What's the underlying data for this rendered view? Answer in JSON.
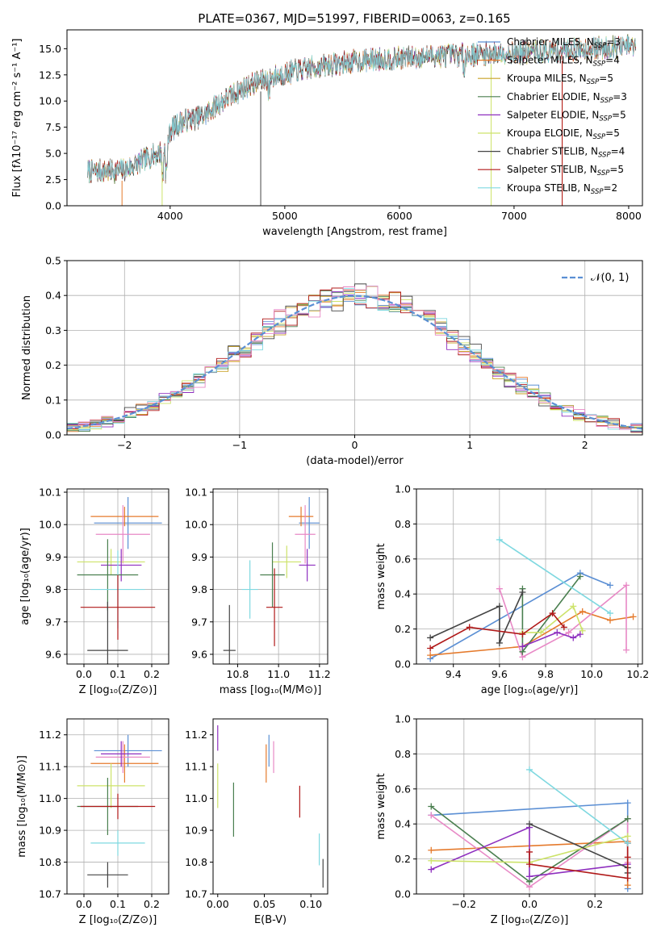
{
  "chart_data": [
    {
      "id": "spectrum",
      "type": "line",
      "title": "PLATE=0367, MJD=51997, FIBERID=0063, z=0.165",
      "xlabel": "wavelength [Angstrom, rest frame]",
      "ylabel": "Flux [fλ10⁻¹⁷ erg cm⁻² s⁻¹ A⁻¹]",
      "xlim": [
        3100,
        8120
      ],
      "ylim": [
        0,
        16.8
      ],
      "xticks": [
        "4000",
        "5000",
        "6000",
        "7000",
        "8000"
      ],
      "yticks": [
        "0.0",
        "2.5",
        "5.0",
        "7.5",
        "10.0",
        "12.5",
        "15.0"
      ],
      "legend": "upper-right",
      "grid": false,
      "continuum": {
        "x": [
          3300,
          3450,
          3600,
          3800,
          3950,
          4000,
          4100,
          4200,
          4300,
          4400,
          4500,
          4700,
          4900,
          5100,
          5300,
          5500,
          5700,
          6000,
          6300,
          6600,
          6900,
          7200,
          7500,
          7800,
          8000
        ],
        "y": [
          3.3,
          3.3,
          3.4,
          4.5,
          5.3,
          7.2,
          8.0,
          8.3,
          8.6,
          9.6,
          10.3,
          11.6,
          12.3,
          12.9,
          13.3,
          13.6,
          13.9,
          14.1,
          14.3,
          14.4,
          14.6,
          14.7,
          14.9,
          15.1,
          15.2
        ]
      },
      "series": [
        {
          "name": "Chabrier MILES, N$_{SSP}$=3",
          "label_main": "Chabrier MILES, N",
          "label_sub": "SSP",
          "label_tail": "=3",
          "color": "#5b8fd4"
        },
        {
          "name": "Salpeter MILES, N$_{SSP}$=4",
          "label_main": "Salpeter MILES, N",
          "label_sub": "SSP",
          "label_tail": "=4",
          "color": "#e57a2c"
        },
        {
          "name": "Kroupa MILES, N$_{SSP}$=5",
          "label_main": "Kroupa MILES, N",
          "label_sub": "SSP",
          "label_tail": "=5",
          "color": "#c9a227"
        },
        {
          "name": "Chabrier ELODIE, N$_{SSP}$=3",
          "label_main": "Chabrier ELODIE, N",
          "label_sub": "SSP",
          "label_tail": "=3",
          "color": "#4a7f4f"
        },
        {
          "name": "Salpeter ELODIE, N$_{SSP}$=5",
          "label_main": "Salpeter ELODIE, N",
          "label_sub": "SSP",
          "label_tail": "=5",
          "color": "#8e2fbf"
        },
        {
          "name": "Kroupa ELODIE, N$_{SSP}$=5",
          "label_main": "Kroupa ELODIE, N",
          "label_sub": "SSP",
          "label_tail": "=5",
          "color": "#cde36a"
        },
        {
          "name": "Chabrier STELIB, N$_{SSP}$=4",
          "label_main": "Chabrier STELIB, N",
          "label_sub": "SSP",
          "label_tail": "=4",
          "color": "#444444"
        },
        {
          "name": "Salpeter STELIB, N$_{SSP}$=5",
          "label_main": "Salpeter STELIB, N",
          "label_sub": "SSP",
          "label_tail": "=5",
          "color": "#b01818"
        },
        {
          "name": "Kroupa STELIB, N$_{SSP}$=2",
          "label_main": "Kroupa STELIB, N",
          "label_sub": "SSP",
          "label_tail": "=2",
          "color": "#7fd8e0"
        }
      ]
    },
    {
      "id": "residuals",
      "type": "line",
      "xlabel": "(data-model)/error",
      "ylabel": "Normed distribution",
      "xlim": [
        -2.5,
        2.5
      ],
      "ylim": [
        0,
        0.5
      ],
      "xticks": [
        "−2",
        "−1",
        "0",
        "1",
        "2"
      ],
      "yticks": [
        "0.0",
        "0.1",
        "0.2",
        "0.3",
        "0.4",
        "0.5"
      ],
      "grid": true,
      "legend": "upper-right",
      "reference": {
        "name": "N(0,1)",
        "label": "𝒩(0, 1)",
        "mean": 0,
        "sigma": 1,
        "color": "#5b8fd4"
      },
      "histogram_bins": {
        "start": -2.5,
        "width": 0.1,
        "count": 50
      }
    },
    {
      "id": "age_vs_Z",
      "type": "scatter",
      "xlabel": "Z [log₁₀(Z/Z⊙)]",
      "ylabel": "age  [log₁₀(age/yr)]",
      "xlim": [
        -0.05,
        0.25
      ],
      "ylim": [
        9.57,
        10.11
      ],
      "xticks": [
        "0.0",
        "0.1",
        "0.2"
      ],
      "yticks": [
        "9.6",
        "9.7",
        "9.8",
        "9.9",
        "10.0",
        "10.1"
      ],
      "grid": true,
      "points": [
        {
          "x": 0.13,
          "xerr": 0.1,
          "y": 10.005,
          "yerr": 0.08,
          "color": "#5b8fd4"
        },
        {
          "x": 0.12,
          "xerr": 0.1,
          "y": 10.025,
          "yerr": 0.03,
          "color": "#e57a2c"
        },
        {
          "x": 0.115,
          "xerr": 0.08,
          "y": 9.97,
          "yerr": 0.09,
          "color": "#e889c6"
        },
        {
          "x": 0.08,
          "xerr": 0.1,
          "y": 9.885,
          "yerr": 0.04,
          "color": "#cde36a"
        },
        {
          "x": 0.11,
          "xerr": 0.06,
          "y": 9.875,
          "yerr": 0.05,
          "color": "#8e2fbf"
        },
        {
          "x": 0.07,
          "xerr": 0.09,
          "y": 9.845,
          "yerr": 0.11,
          "color": "#4a7f4f"
        },
        {
          "x": 0.1,
          "xerr": 0.08,
          "y": 9.8,
          "yerr": 0.12,
          "color": "#7fd8e0"
        },
        {
          "x": 0.1,
          "xerr": 0.11,
          "y": 9.745,
          "yerr": 0.1,
          "color": "#b01818"
        },
        {
          "x": 0.07,
          "xerr": 0.06,
          "y": 9.612,
          "yerr": 0.15,
          "color": "#444444"
        }
      ]
    },
    {
      "id": "age_vs_mass",
      "type": "scatter",
      "xlabel": "mass [log₁₀(M/M⊙)]",
      "ylabel": "",
      "xlim": [
        10.68,
        11.24
      ],
      "ylim": [
        9.57,
        10.11
      ],
      "xticks": [
        "10.8",
        "11.0",
        "11.2"
      ],
      "yticks": [
        "9.6",
        "9.7",
        "9.8",
        "9.9",
        "10.0",
        "10.1"
      ],
      "grid": true,
      "points": [
        {
          "x": 11.15,
          "xerr": 0.05,
          "y": 10.005,
          "yerr": 0.08,
          "color": "#5b8fd4"
        },
        {
          "x": 11.11,
          "xerr": 0.06,
          "y": 10.025,
          "yerr": 0.03,
          "color": "#e57a2c"
        },
        {
          "x": 11.13,
          "xerr": 0.05,
          "y": 9.97,
          "yerr": 0.09,
          "color": "#e889c6"
        },
        {
          "x": 11.04,
          "xerr": 0.07,
          "y": 9.885,
          "yerr": 0.05,
          "color": "#cde36a"
        },
        {
          "x": 11.14,
          "xerr": 0.04,
          "y": 9.875,
          "yerr": 0.05,
          "color": "#8e2fbf"
        },
        {
          "x": 10.97,
          "xerr": 0.06,
          "y": 9.845,
          "yerr": 0.1,
          "color": "#4a7f4f"
        },
        {
          "x": 10.86,
          "xerr": 0.04,
          "y": 9.8,
          "yerr": 0.09,
          "color": "#7fd8e0"
        },
        {
          "x": 10.98,
          "xerr": 0.04,
          "y": 9.745,
          "yerr": 0.12,
          "color": "#b01818"
        },
        {
          "x": 10.76,
          "xerr": 0.03,
          "y": 9.612,
          "yerr": 0.14,
          "color": "#444444"
        }
      ]
    },
    {
      "id": "weight_vs_age",
      "type": "line",
      "xlabel": "age  [log₁₀(age/yr)]",
      "ylabel": "mass weight",
      "xlim": [
        9.24,
        10.22
      ],
      "ylim": [
        0,
        1
      ],
      "xticks": [
        "9.4",
        "9.6",
        "9.8",
        "10.0",
        "10.2"
      ],
      "yticks": [
        "0.0",
        "0.2",
        "0.4",
        "0.6",
        "0.8",
        "1.0"
      ],
      "grid": true,
      "series": [
        {
          "color": "#5b8fd4",
          "x": [
            9.3,
            9.95,
            10.08
          ],
          "y": [
            0.03,
            0.52,
            0.45
          ]
        },
        {
          "color": "#e57a2c",
          "x": [
            9.3,
            9.7,
            9.96,
            10.08,
            10.18
          ],
          "y": [
            0.05,
            0.1,
            0.3,
            0.25,
            0.27
          ]
        },
        {
          "color": "#e889c6",
          "x": [
            9.6,
            9.7,
            9.9,
            10.15,
            10.15
          ],
          "y": [
            0.43,
            0.04,
            0.18,
            0.45,
            0.08
          ]
        },
        {
          "color": "#4a7f4f",
          "x": [
            9.7,
            9.7,
            9.95
          ],
          "y": [
            0.43,
            0.07,
            0.5
          ]
        },
        {
          "color": "#8e2fbf",
          "x": [
            9.7,
            9.85,
            9.92,
            9.95
          ],
          "y": [
            0.1,
            0.18,
            0.15,
            0.17
          ]
        },
        {
          "color": "#cde36a",
          "x": [
            9.7,
            9.78,
            9.92,
            9.96
          ],
          "y": [
            0.18,
            0.18,
            0.33,
            0.19
          ]
        },
        {
          "color": "#444444",
          "x": [
            9.3,
            9.6,
            9.6,
            9.7
          ],
          "y": [
            0.15,
            0.33,
            0.12,
            0.41
          ]
        },
        {
          "color": "#b01818",
          "x": [
            9.3,
            9.47,
            9.7,
            9.83,
            9.88
          ],
          "y": [
            0.09,
            0.21,
            0.17,
            0.29,
            0.21
          ]
        },
        {
          "color": "#7fd8e0",
          "x": [
            9.6,
            10.08
          ],
          "y": [
            0.71,
            0.29
          ]
        }
      ]
    },
    {
      "id": "mass_vs_Z",
      "type": "scatter",
      "xlabel": "Z [log₁₀(Z/Z⊙)]",
      "ylabel": "mass [log₁₀(M/M⊙)]",
      "xlim": [
        -0.05,
        0.25
      ],
      "ylim": [
        10.7,
        11.25
      ],
      "xticks": [
        "0.0",
        "0.1",
        "0.2"
      ],
      "yticks": [
        "10.7",
        "10.8",
        "10.9",
        "11.0",
        "11.1",
        "11.2"
      ],
      "grid": true,
      "points": [
        {
          "x": 0.13,
          "xerr": 0.1,
          "y": 11.15,
          "yerr": 0.05,
          "color": "#5b8fd4"
        },
        {
          "x": 0.12,
          "xerr": 0.1,
          "y": 11.11,
          "yerr": 0.06,
          "color": "#e57a2c"
        },
        {
          "x": 0.115,
          "xerr": 0.08,
          "y": 11.13,
          "yerr": 0.05,
          "color": "#e889c6"
        },
        {
          "x": 0.08,
          "xerr": 0.1,
          "y": 11.04,
          "yerr": 0.07,
          "color": "#cde36a"
        },
        {
          "x": 0.11,
          "xerr": 0.06,
          "y": 11.14,
          "yerr": 0.04,
          "color": "#8e2fbf"
        },
        {
          "x": 0.07,
          "xerr": 0.09,
          "y": 10.975,
          "yerr": 0.09,
          "color": "#4a7f4f"
        },
        {
          "x": 0.1,
          "xerr": 0.08,
          "y": 10.86,
          "yerr": 0.04,
          "color": "#7fd8e0"
        },
        {
          "x": 0.1,
          "xerr": 0.11,
          "y": 10.975,
          "yerr": 0.04,
          "color": "#b01818"
        },
        {
          "x": 0.07,
          "xerr": 0.06,
          "y": 10.76,
          "yerr": 0.04,
          "color": "#444444"
        }
      ]
    },
    {
      "id": "mass_vs_ebv",
      "type": "scatter",
      "xlabel": "E(B-V)",
      "ylabel": "",
      "xlim": [
        -0.005,
        0.118
      ],
      "ylim": [
        10.7,
        11.25
      ],
      "xticks": [
        "0.00",
        "0.05",
        "0.10"
      ],
      "yticks": [
        "10.7",
        "10.8",
        "10.9",
        "11.0",
        "11.1",
        "11.2"
      ],
      "grid": false,
      "points": [
        {
          "x": 0.055,
          "y": 11.15,
          "yerr": 0.05,
          "color": "#5b8fd4"
        },
        {
          "x": 0.052,
          "y": 11.11,
          "yerr": 0.06,
          "color": "#e57a2c"
        },
        {
          "x": 0.06,
          "y": 11.13,
          "yerr": 0.05,
          "color": "#e889c6"
        },
        {
          "x": 0.0,
          "y": 11.04,
          "yerr": 0.07,
          "color": "#cde36a"
        },
        {
          "x": 0.0,
          "y": 11.19,
          "yerr": 0.04,
          "color": "#8e2fbf"
        },
        {
          "x": 0.017,
          "y": 10.965,
          "yerr": 0.085,
          "color": "#4a7f4f"
        },
        {
          "x": 0.109,
          "y": 10.84,
          "yerr": 0.05,
          "color": "#7fd8e0"
        },
        {
          "x": 0.088,
          "y": 10.99,
          "yerr": 0.05,
          "color": "#b01818"
        },
        {
          "x": 0.113,
          "y": 10.765,
          "yerr": 0.045,
          "color": "#444444"
        }
      ]
    },
    {
      "id": "weight_vs_Z",
      "type": "line",
      "xlabel": "Z [log₁₀(Z/Z⊙)]",
      "ylabel": "mass weight",
      "xlim": [
        -0.345,
        0.345
      ],
      "ylim": [
        0,
        1
      ],
      "xticks": [
        "−0.2",
        "0.0",
        "0.2"
      ],
      "yticks": [
        "0.0",
        "0.2",
        "0.4",
        "0.6",
        "0.8",
        "1.0"
      ],
      "grid": true,
      "series": [
        {
          "color": "#5b8fd4",
          "x": [
            -0.3,
            0.3,
            0.3
          ],
          "y": [
            0.45,
            0.52,
            0.03
          ]
        },
        {
          "color": "#e57a2c",
          "x": [
            -0.3,
            0.3,
            0.3
          ],
          "y": [
            0.25,
            0.3,
            0.05
          ]
        },
        {
          "color": "#e889c6",
          "x": [
            -0.3,
            0.0,
            0.3,
            0.3
          ],
          "y": [
            0.45,
            0.04,
            0.43,
            0.18
          ]
        },
        {
          "color": "#4a7f4f",
          "x": [
            -0.3,
            0.0,
            0.3
          ],
          "y": [
            0.5,
            0.07,
            0.43
          ]
        },
        {
          "color": "#8e2fbf",
          "x": [
            -0.3,
            0.0,
            0.0,
            0.3
          ],
          "y": [
            0.14,
            0.38,
            0.1,
            0.17
          ]
        },
        {
          "color": "#cde36a",
          "x": [
            -0.3,
            0.0,
            0.3
          ],
          "y": [
            0.19,
            0.18,
            0.33
          ]
        },
        {
          "color": "#444444",
          "x": [
            0.0,
            0.3,
            0.3
          ],
          "y": [
            0.4,
            0.15,
            0.12
          ]
        },
        {
          "color": "#b01818",
          "x": [
            0.0,
            0.0,
            0.3,
            0.3,
            0.3
          ],
          "y": [
            0.24,
            0.17,
            0.09,
            0.21,
            0.29
          ]
        },
        {
          "color": "#7fd8e0",
          "x": [
            0.0,
            0.3
          ],
          "y": [
            0.71,
            0.29
          ]
        }
      ]
    }
  ]
}
